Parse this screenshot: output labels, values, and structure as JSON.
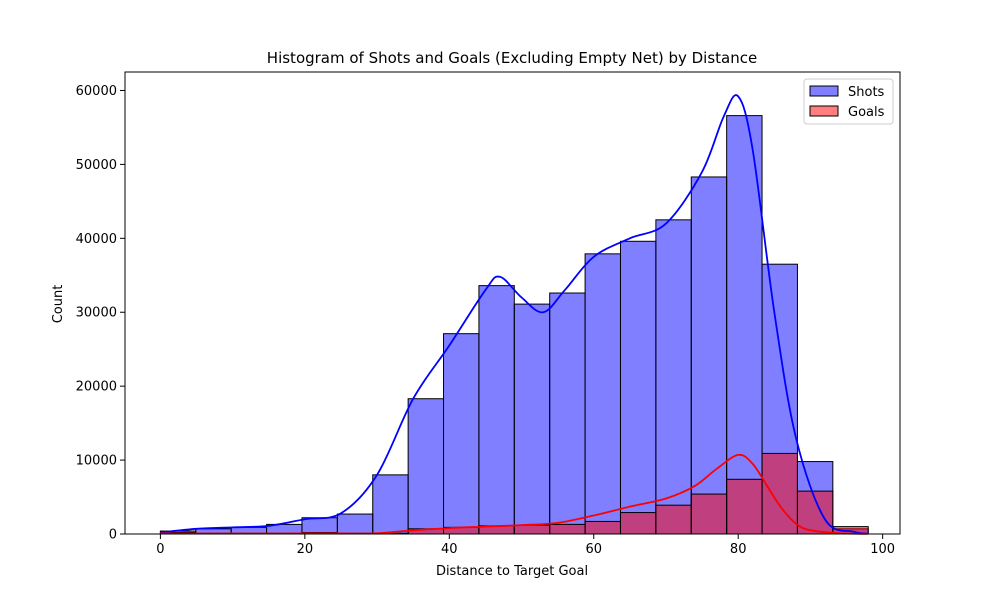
{
  "chart_data": {
    "type": "bar",
    "title": "Histogram of Shots and Goals (Excluding Empty Net) by Distance",
    "xlabel": "Distance to Target Goal",
    "ylabel": "Count",
    "xlim": [
      -4.9,
      102.4
    ],
    "ylim": [
      0,
      62500
    ],
    "x_ticks": [
      0,
      20,
      40,
      60,
      80,
      100
    ],
    "y_ticks": [
      0,
      10000,
      20000,
      30000,
      40000,
      50000,
      60000
    ],
    "bin_edges": [
      0,
      4.9,
      9.8,
      14.7,
      19.6,
      24.5,
      29.4,
      34.3,
      39.2,
      44.1,
      49.0,
      53.9,
      58.8,
      63.7,
      68.6,
      73.5,
      78.4,
      83.3,
      88.2,
      93.1,
      98.0
    ],
    "grid": false,
    "legend_position": "top-right",
    "series": [
      {
        "name": "Shots",
        "color": "#0000ff",
        "fill_opacity": 0.5,
        "values": [
          400,
          700,
          900,
          1300,
          2200,
          2700,
          8000,
          18300,
          27100,
          33600,
          31100,
          32600,
          37900,
          39600,
          42500,
          48300,
          56600,
          36500,
          9800,
          700
        ],
        "kde": {
          "x": [
            0,
            5,
            10,
            15,
            20,
            25,
            30,
            35,
            40,
            45,
            47,
            50,
            53,
            56,
            60,
            65,
            70,
            75,
            78,
            80,
            82,
            85,
            88,
            92,
            96,
            98
          ],
          "y": [
            200,
            700,
            900,
            1100,
            2000,
            2800,
            8000,
            18300,
            25500,
            33000,
            34800,
            32000,
            30000,
            33000,
            37500,
            40000,
            42000,
            49000,
            56500,
            59200,
            52000,
            30000,
            13000,
            2000,
            300,
            50
          ]
        }
      },
      {
        "name": "Goals",
        "color": "#ff0000",
        "fill_opacity": 0.5,
        "values": [
          200,
          100,
          100,
          100,
          200,
          100,
          100,
          700,
          900,
          1100,
          1200,
          1300,
          1700,
          2900,
          3900,
          5400,
          7400,
          10900,
          5800,
          1000
        ],
        "kde": {
          "x": [
            0,
            5,
            10,
            15,
            20,
            25,
            30,
            35,
            40,
            45,
            50,
            55,
            60,
            65,
            70,
            74,
            77,
            80,
            82,
            84,
            86,
            88,
            90,
            94,
            98
          ],
          "y": [
            80,
            60,
            60,
            60,
            80,
            80,
            100,
            500,
            800,
            1000,
            1200,
            1500,
            2500,
            3700,
            4800,
            6500,
            8800,
            10700,
            9500,
            6500,
            3500,
            1400,
            500,
            100,
            20
          ]
        }
      }
    ]
  }
}
